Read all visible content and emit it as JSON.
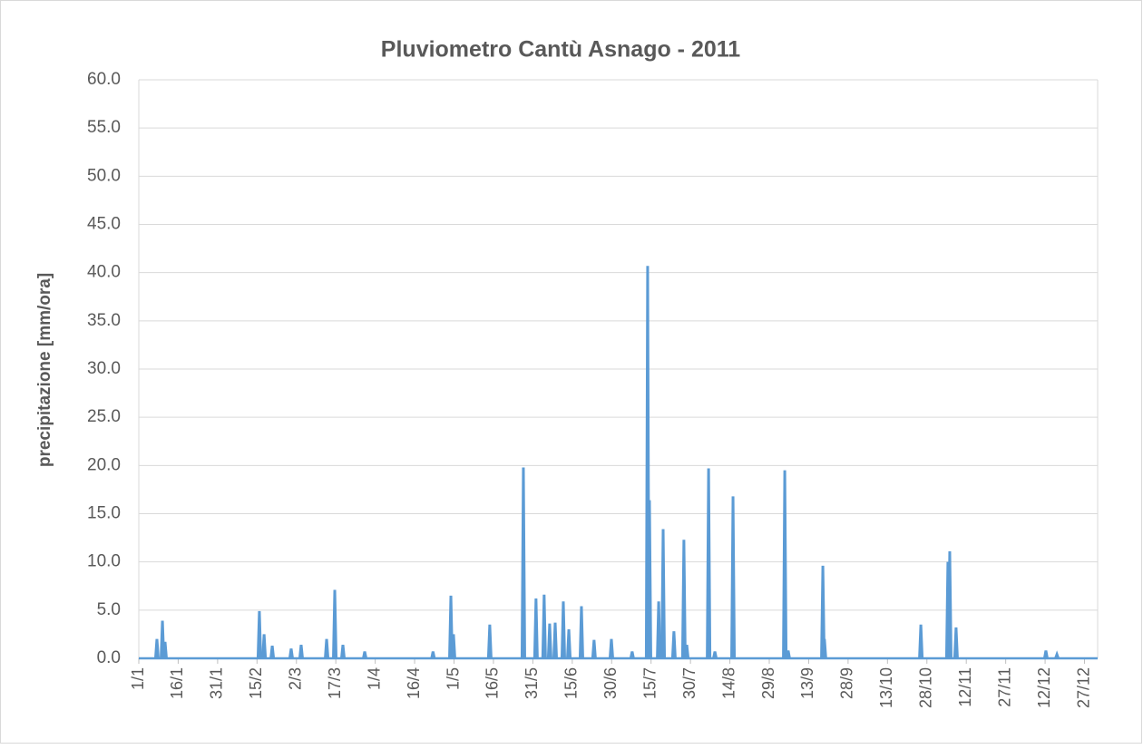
{
  "chart_data": {
    "type": "line",
    "title": "Pluviometro Cantù Asnago - 2011",
    "y_label": "precipitazione [mm/ora]",
    "color": "#5b9bd5",
    "grid": true,
    "xlim": [
      0,
      365
    ],
    "ylim": [
      0,
      60
    ],
    "yticks": [
      {
        "value": 0,
        "label": "0.0"
      },
      {
        "value": 5,
        "label": "5.0"
      },
      {
        "value": 10,
        "label": "10.0"
      },
      {
        "value": 15,
        "label": "15.0"
      },
      {
        "value": 20,
        "label": "20.0"
      },
      {
        "value": 25,
        "label": "25.0"
      },
      {
        "value": 30,
        "label": "30.0"
      },
      {
        "value": 35,
        "label": "35.0"
      },
      {
        "value": 40,
        "label": "40.0"
      },
      {
        "value": 45,
        "label": "45.0"
      },
      {
        "value": 50,
        "label": "50.0"
      },
      {
        "value": 55,
        "label": "55.0"
      },
      {
        "value": 60,
        "label": "60.0"
      }
    ],
    "xticks": [
      {
        "value": 0,
        "label": "1/1"
      },
      {
        "value": 15,
        "label": "16/1"
      },
      {
        "value": 30,
        "label": "31/1"
      },
      {
        "value": 45,
        "label": "15/2"
      },
      {
        "value": 60,
        "label": "2/3"
      },
      {
        "value": 75,
        "label": "17/3"
      },
      {
        "value": 90,
        "label": "1/4"
      },
      {
        "value": 105,
        "label": "16/4"
      },
      {
        "value": 120,
        "label": "1/5"
      },
      {
        "value": 135,
        "label": "16/5"
      },
      {
        "value": 150,
        "label": "31/5"
      },
      {
        "value": 165,
        "label": "15/6"
      },
      {
        "value": 180,
        "label": "30/6"
      },
      {
        "value": 195,
        "label": "15/7"
      },
      {
        "value": 210,
        "label": "30/7"
      },
      {
        "value": 225,
        "label": "14/8"
      },
      {
        "value": 240,
        "label": "29/8"
      },
      {
        "value": 255,
        "label": "13/9"
      },
      {
        "value": 270,
        "label": "28/9"
      },
      {
        "value": 285,
        "label": "13/10"
      },
      {
        "value": 300,
        "label": "28/10"
      },
      {
        "value": 315,
        "label": "12/11"
      },
      {
        "value": 330,
        "label": "27/11"
      },
      {
        "value": 345,
        "label": "12/12"
      },
      {
        "value": 360,
        "label": "27/12"
      }
    ],
    "x": [
      6.9,
      9.0,
      10.0,
      45.9,
      47.7,
      50.8,
      58.0,
      61.8,
      71.5,
      74.6,
      77.7,
      86.0,
      112.0,
      118.8,
      119.8,
      133.6,
      146.4,
      151.2,
      154.3,
      156.4,
      158.5,
      161.6,
      163.7,
      168.5,
      173.3,
      179.9,
      187.8,
      193.7,
      194.4,
      197.9,
      199.6,
      203.7,
      207.5,
      208.6,
      216.9,
      219.3,
      226.2,
      245.9,
      247.2,
      260.4,
      261.0,
      297.7,
      308.0,
      308.7,
      311.1,
      345.3,
      349.5
    ],
    "values": [
      2.0,
      3.9,
      1.7,
      4.9,
      2.5,
      1.3,
      1.0,
      1.4,
      2.0,
      7.1,
      1.4,
      0.7,
      0.7,
      6.5,
      2.5,
      3.5,
      19.8,
      6.2,
      6.6,
      3.6,
      3.7,
      5.9,
      3.0,
      5.4,
      1.9,
      2.0,
      0.7,
      40.7,
      16.4,
      5.9,
      13.4,
      2.8,
      12.3,
      1.4,
      19.7,
      0.7,
      16.8,
      19.5,
      0.8,
      9.6,
      2.0,
      3.5,
      10.0,
      11.1,
      3.2,
      0.8,
      0.4
    ]
  }
}
